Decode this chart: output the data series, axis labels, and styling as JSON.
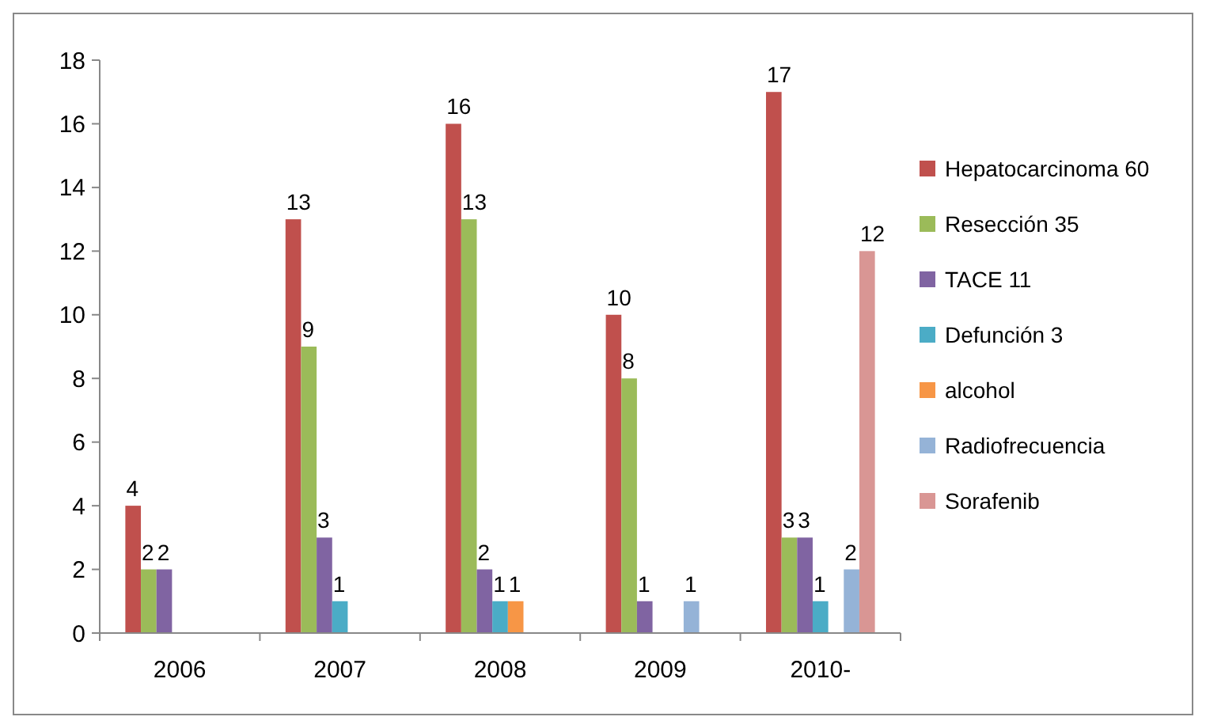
{
  "chart_data": {
    "type": "bar",
    "categories": [
      "2006",
      "2007",
      "2008",
      "2009",
      "2010-"
    ],
    "series": [
      {
        "name": "Hepatocarcinoma 60",
        "color": "#c0504d",
        "values": [
          4,
          13,
          16,
          10,
          17
        ]
      },
      {
        "name": "Resección 35",
        "color": "#9bbb59",
        "values": [
          2,
          9,
          13,
          8,
          3
        ]
      },
      {
        "name": "TACE 11",
        "color": "#8064a2",
        "values": [
          2,
          3,
          2,
          1,
          3
        ]
      },
      {
        "name": "Defunción 3",
        "color": "#4bacc6",
        "values": [
          null,
          1,
          1,
          null,
          1
        ]
      },
      {
        "name": "alcohol",
        "color": "#f79646",
        "values": [
          null,
          null,
          1,
          null,
          null
        ]
      },
      {
        "name": "Radiofrecuencia",
        "color": "#95b3d7",
        "values": [
          null,
          null,
          null,
          1,
          2
        ]
      },
      {
        "name": "Sorafenib",
        "color": "#d99694",
        "values": [
          null,
          null,
          null,
          null,
          12
        ]
      }
    ],
    "ylim": [
      0,
      18
    ],
    "yticks": [
      0,
      2,
      4,
      6,
      8,
      10,
      12,
      14,
      16,
      18
    ],
    "grid": false,
    "legend": "right",
    "data_labels": true
  }
}
